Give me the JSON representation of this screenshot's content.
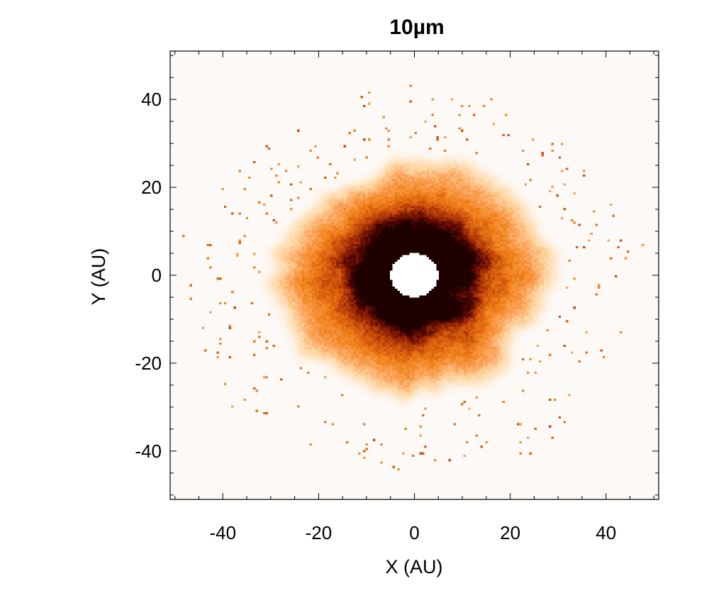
{
  "chart_data": {
    "type": "heatmap",
    "title": "10µm",
    "xlabel": "X (AU)",
    "ylabel": "Y (AU)",
    "xlim": [
      -51,
      51
    ],
    "ylim": [
      -51,
      51
    ],
    "x_ticks": [
      -40,
      -20,
      0,
      20,
      40
    ],
    "y_ticks": [
      -40,
      -20,
      0,
      20,
      40
    ],
    "x_tick_labels": [
      "-40",
      "-20",
      "0",
      "20",
      "40"
    ],
    "y_tick_labels": [
      "-40",
      "-20",
      "0",
      "20",
      "40"
    ],
    "minor_tick_step": 5,
    "colormap": [
      "#fdf9f6",
      "#fdd9a8",
      "#fba055",
      "#f08119",
      "#d45a0c",
      "#a12c06",
      "#5a0802",
      "#1e0000"
    ],
    "grid": false,
    "colorbar": false,
    "emission": {
      "center": [
        0,
        0
      ],
      "inner_hole_radius": 5,
      "outer_extent": {
        "x_min": -36,
        "x_max": 32,
        "y_min": -29,
        "y_max": 28
      },
      "peak_brightness_radius": 6
    }
  }
}
